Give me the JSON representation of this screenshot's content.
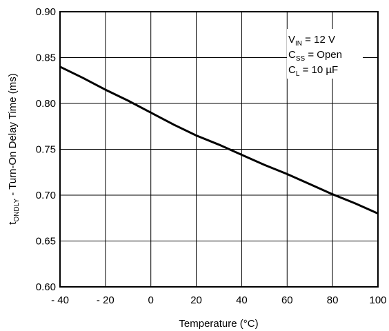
{
  "chart_data": {
    "type": "line",
    "xlabel": "Temperature (°C)",
    "ylabel_main": "t",
    "ylabel_sub": "ONDLY",
    "ylabel_rest": " - Turn-On Delay Time (ms)",
    "xlim": [
      -40,
      100
    ],
    "ylim": [
      0.6,
      0.9
    ],
    "xticks": [
      -40,
      -20,
      0,
      20,
      40,
      60,
      80,
      100
    ],
    "xtick_labels": [
      "- 40",
      "- 20",
      "0",
      "20",
      "40",
      "60",
      "80",
      "100"
    ],
    "yticks": [
      0.6,
      0.65,
      0.7,
      0.75,
      0.8,
      0.85,
      0.9
    ],
    "ytick_labels": [
      "0.60",
      "0.65",
      "0.70",
      "0.75",
      "0.80",
      "0.85",
      "0.90"
    ],
    "grid": true,
    "series": [
      {
        "x": [
          -40,
          -30,
          -20,
          -10,
          0,
          10,
          20,
          30,
          40,
          50,
          60,
          70,
          80,
          90,
          100
        ],
        "y": [
          0.84,
          0.828,
          0.815,
          0.803,
          0.79,
          0.777,
          0.765,
          0.755,
          0.744,
          0.733,
          0.723,
          0.712,
          0.701,
          0.691,
          0.68
        ],
        "color": "#000000"
      }
    ],
    "annotations": [
      {
        "main": "V",
        "sub": "IN",
        "rest": " = 12 V"
      },
      {
        "main": "C",
        "sub": "SS",
        "rest": " = Open"
      },
      {
        "main": "C",
        "sub": "L",
        "rest": " = 10 µF"
      }
    ]
  }
}
